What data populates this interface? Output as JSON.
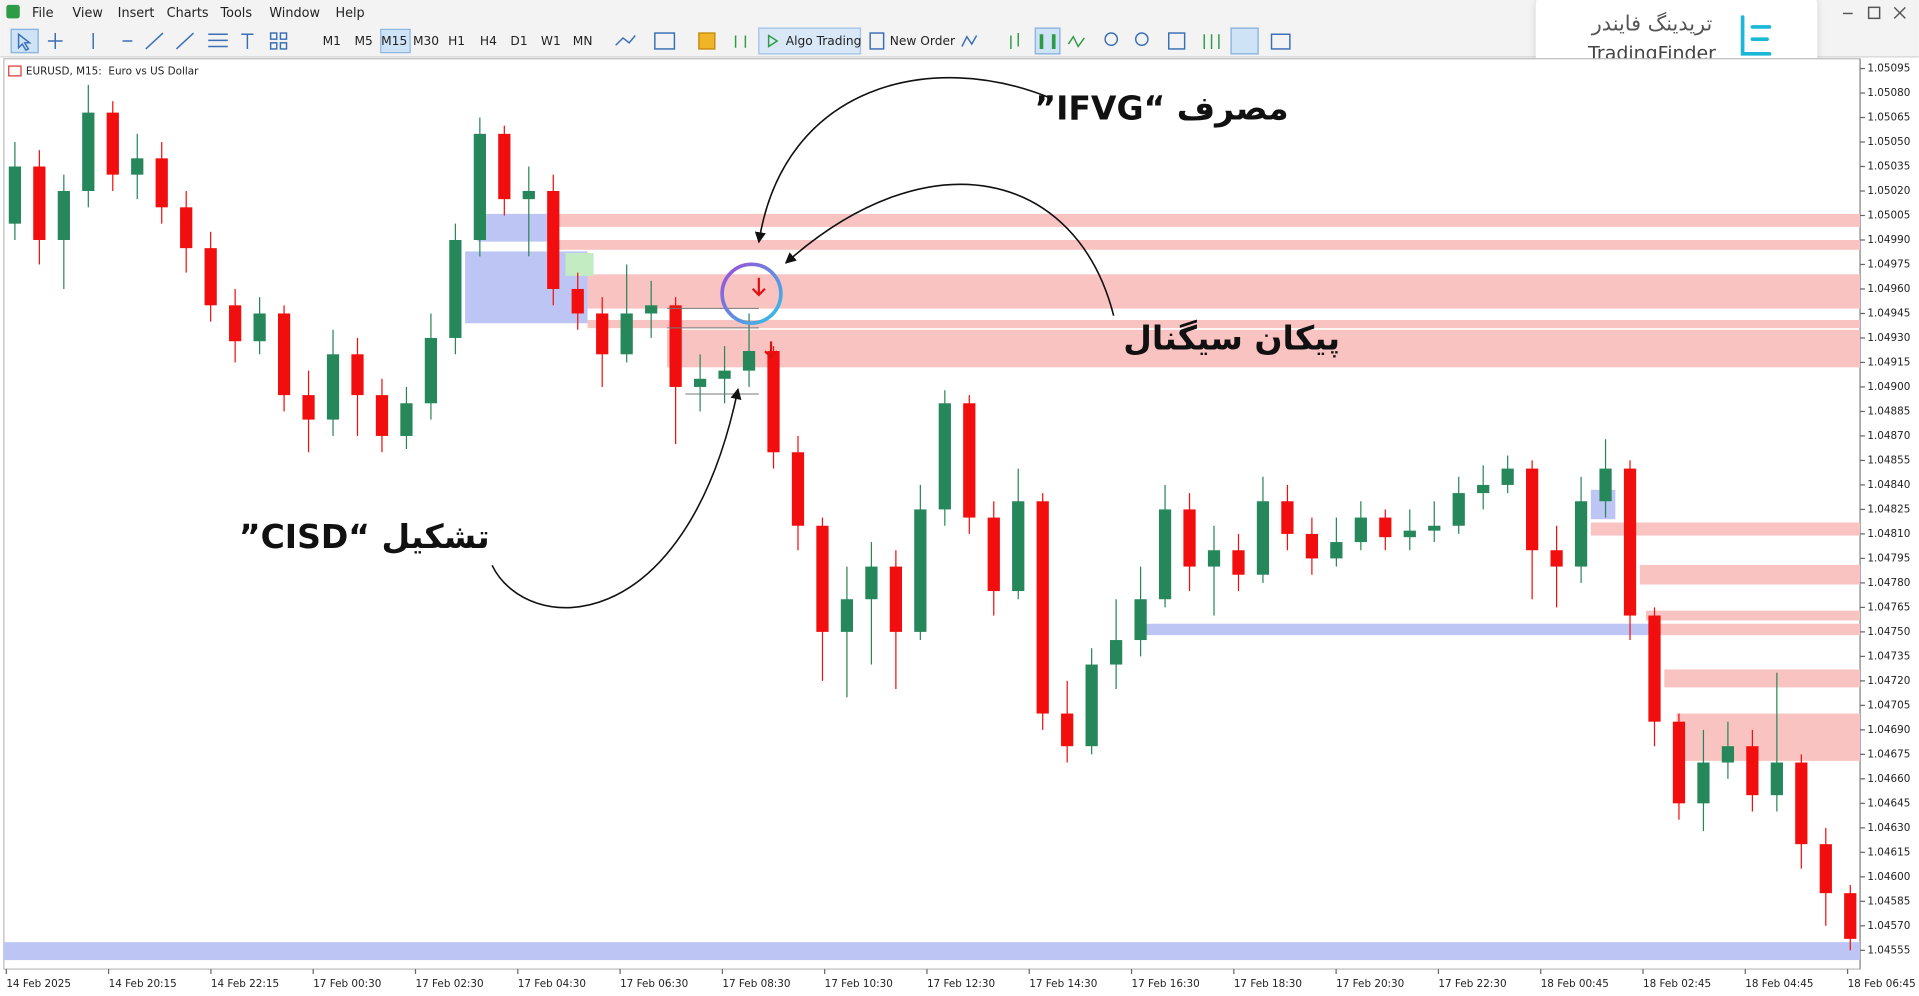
{
  "menu": [
    "File",
    "View",
    "Insert",
    "Charts",
    "Tools",
    "Window",
    "Help"
  ],
  "toolbar": {
    "timeframes": [
      "M1",
      "M5",
      "M15",
      "M30",
      "H1",
      "H4",
      "D1",
      "W1",
      "MN"
    ],
    "algo_trading": "Algo Trading",
    "new_order": "New Order"
  },
  "logo": {
    "persian": "تریدینگ فایندر",
    "latin": "TradingFinder"
  },
  "chart_data": {
    "type": "candlestick",
    "title": "EURUSD, M15:  Euro vs US Dollar",
    "colors": {
      "up": "#26875a",
      "down": "#f20e0e"
    },
    "ylim": [
      1.04545,
      1.05101
    ],
    "yticks": [
      1.05095,
      {
        "value": 1.0508,
        "label": "1.05080"
      },
      1.05065,
      {
        "value": 1.0505,
        "label": "1.05050"
      },
      1.05035,
      {
        "value": 1.0502,
        "label": "1.05020"
      },
      1.05005,
      {
        "value": 1.0499,
        "label": "1.04990"
      },
      1.04975,
      {
        "value": 1.0496,
        "label": "1.04960"
      },
      1.04945,
      {
        "value": 1.0493,
        "label": "1.04930"
      },
      1.04915,
      {
        "value": 1.049,
        "label": "1.04900"
      },
      1.04885,
      {
        "value": 1.0487,
        "label": "1.04870"
      },
      1.04855,
      {
        "value": 1.0484,
        "label": "1.04840"
      },
      1.04825,
      {
        "value": 1.0481,
        "label": "1.04810"
      },
      1.04795,
      {
        "value": 1.0478,
        "label": "1.04780"
      },
      1.04765,
      {
        "value": 1.0475,
        "label": "1.04750"
      },
      1.04735,
      {
        "value": 1.0472,
        "label": "1.04720"
      },
      1.04705,
      {
        "value": 1.0469,
        "label": "1.04690"
      },
      1.04675,
      {
        "value": 1.0466,
        "label": "1.04660"
      },
      1.04645,
      {
        "value": 1.0463,
        "label": "1.04630"
      },
      1.04615,
      {
        "value": 1.046,
        "label": "1.04600"
      },
      1.04585,
      {
        "value": 1.0457,
        "label": "1.04570"
      },
      1.04555
    ],
    "time_labels": [
      "14 Feb 2025",
      "14 Feb 20:15",
      "14 Feb 22:15",
      "17 Feb 00:30",
      "17 Feb 02:30",
      "17 Feb 04:30",
      "17 Feb 06:30",
      "17 Feb 08:30",
      "17 Feb 10:30",
      "17 Feb 12:30",
      "17 Feb 14:30",
      "17 Feb 16:30",
      "17 Feb 18:30",
      "17 Feb 20:30",
      "17 Feb 22:30",
      "18 Feb 00:45",
      "18 Feb 02:45",
      "18 Feb 04:45",
      "18 Feb 06:45"
    ],
    "candles": [
      [
        1.05,
        1.0505,
        1.0499,
        1.05035
      ],
      [
        1.05035,
        1.05045,
        1.04975,
        1.0499
      ],
      [
        1.0499,
        1.0503,
        1.0496,
        1.0502
      ],
      [
        1.0502,
        1.05085,
        1.0501,
        1.05068
      ],
      [
        1.05068,
        1.05075,
        1.0502,
        1.0503
      ],
      [
        1.0503,
        1.05055,
        1.05015,
        1.0504
      ],
      [
        1.0504,
        1.0505,
        1.05,
        1.0501
      ],
      [
        1.0501,
        1.0502,
        1.0497,
        1.04985
      ],
      [
        1.04985,
        1.04995,
        1.0494,
        1.0495
      ],
      [
        1.0495,
        1.0496,
        1.04915,
        1.04928
      ],
      [
        1.04928,
        1.04955,
        1.0492,
        1.04945
      ],
      [
        1.04945,
        1.0495,
        1.04885,
        1.04895
      ],
      [
        1.04895,
        1.0491,
        1.0486,
        1.0488
      ],
      [
        1.0488,
        1.04935,
        1.0487,
        1.0492
      ],
      [
        1.0492,
        1.0493,
        1.0487,
        1.04895
      ],
      [
        1.04895,
        1.04905,
        1.0486,
        1.0487
      ],
      [
        1.0487,
        1.049,
        1.04862,
        1.0489
      ],
      [
        1.0489,
        1.04945,
        1.0488,
        1.0493
      ],
      [
        1.0493,
        1.05,
        1.0492,
        1.0499
      ],
      [
        1.0499,
        1.05065,
        1.0498,
        1.05055
      ],
      [
        1.05055,
        1.0506,
        1.05005,
        1.05015
      ],
      [
        1.05015,
        1.05035,
        1.0498,
        1.0502
      ],
      [
        1.0502,
        1.0503,
        1.0495,
        1.0496
      ],
      [
        1.0496,
        1.0497,
        1.04935,
        1.04945
      ],
      [
        1.04945,
        1.04955,
        1.049,
        1.0492
      ],
      [
        1.0492,
        1.04975,
        1.04915,
        1.04945
      ],
      [
        1.04945,
        1.04965,
        1.0493,
        1.0495
      ],
      [
        1.0495,
        1.04955,
        1.04865,
        1.049
      ],
      [
        1.049,
        1.0492,
        1.04885,
        1.04905
      ],
      [
        1.04905,
        1.04925,
        1.0489,
        1.0491
      ],
      [
        1.0491,
        1.04945,
        1.049,
        1.04922
      ],
      [
        1.04922,
        1.04925,
        1.0485,
        1.0486
      ],
      [
        1.0486,
        1.0487,
        1.048,
        1.04815
      ],
      [
        1.04815,
        1.0482,
        1.0472,
        1.0475
      ],
      [
        1.0475,
        1.0479,
        1.0471,
        1.0477
      ],
      [
        1.0477,
        1.04805,
        1.0473,
        1.0479
      ],
      [
        1.0479,
        1.048,
        1.04715,
        1.0475
      ],
      [
        1.0475,
        1.0484,
        1.04745,
        1.04825
      ],
      [
        1.04825,
        1.04898,
        1.04815,
        1.0489
      ],
      [
        1.0489,
        1.04895,
        1.0481,
        1.0482
      ],
      [
        1.0482,
        1.0483,
        1.0476,
        1.04775
      ],
      [
        1.04775,
        1.0485,
        1.0477,
        1.0483
      ],
      [
        1.0483,
        1.04835,
        1.0469,
        1.047
      ],
      [
        1.047,
        1.0472,
        1.0467,
        1.0468
      ],
      [
        1.0468,
        1.0474,
        1.04675,
        1.0473
      ],
      [
        1.0473,
        1.0477,
        1.04715,
        1.04745
      ],
      [
        1.04745,
        1.0479,
        1.04735,
        1.0477
      ],
      [
        1.0477,
        1.0484,
        1.04765,
        1.04825
      ],
      [
        1.04825,
        1.04835,
        1.04775,
        1.0479
      ],
      [
        1.0479,
        1.04815,
        1.0476,
        1.048
      ],
      [
        1.048,
        1.0481,
        1.04775,
        1.04785
      ],
      [
        1.04785,
        1.04845,
        1.0478,
        1.0483
      ],
      [
        1.0483,
        1.0484,
        1.048,
        1.0481
      ],
      [
        1.0481,
        1.0482,
        1.04785,
        1.04795
      ],
      [
        1.04795,
        1.0482,
        1.0479,
        1.04805
      ],
      [
        1.04805,
        1.0483,
        1.048,
        1.0482
      ],
      [
        1.0482,
        1.04825,
        1.048,
        1.04808
      ],
      [
        1.04808,
        1.04825,
        1.048,
        1.04812
      ],
      [
        1.04812,
        1.0483,
        1.04805,
        1.04815
      ],
      [
        1.04815,
        1.04845,
        1.0481,
        1.04835
      ],
      [
        1.04835,
        1.04852,
        1.04825,
        1.0484
      ],
      [
        1.0484,
        1.04858,
        1.04835,
        1.0485
      ],
      [
        1.0485,
        1.04855,
        1.0477,
        1.048
      ],
      [
        1.048,
        1.04815,
        1.04765,
        1.0479
      ],
      [
        1.0479,
        1.04845,
        1.0478,
        1.0483
      ],
      [
        1.0483,
        1.04868,
        1.0482,
        1.0485
      ],
      [
        1.0485,
        1.04855,
        1.04745,
        1.0476
      ],
      [
        1.0476,
        1.04765,
        1.0468,
        1.04695
      ],
      [
        1.04695,
        1.047,
        1.04635,
        1.04645
      ],
      [
        1.04645,
        1.0469,
        1.04628,
        1.0467
      ],
      [
        1.0467,
        1.04695,
        1.0466,
        1.0468
      ],
      [
        1.0468,
        1.0469,
        1.0464,
        1.0465
      ],
      [
        1.0465,
        1.04725,
        1.0464,
        1.0467
      ],
      [
        1.0467,
        1.04675,
        1.04605,
        1.0462
      ],
      [
        1.0462,
        1.0463,
        1.0457,
        1.0459
      ],
      [
        1.0459,
        1.04595,
        1.04555,
        1.04562
      ]
    ],
    "zones": [
      {
        "color": "#f9c3c1",
        "low": 1.04998,
        "high": 1.05006,
        "from": 22.2,
        "to": 75.4
      },
      {
        "color": "#f9c3c1",
        "low": 1.04984,
        "high": 1.0499,
        "from": 22.2,
        "to": 75.4
      },
      {
        "color": "#f9c3c1",
        "low": 1.04948,
        "high": 1.04969,
        "from": 23.4,
        "to": 75.4
      },
      {
        "color": "#f9c3c1",
        "low": 1.04936,
        "high": 1.04941,
        "from": 23.4,
        "to": 75.4
      },
      {
        "color": "#f9c3c1",
        "low": 1.04912,
        "high": 1.04935,
        "from": 26.65,
        "to": 75.4
      },
      {
        "color": "#f9c3c1",
        "low": 1.04809,
        "high": 1.04817,
        "from": 64.4,
        "to": 75.4
      },
      {
        "color": "#f9c3c1",
        "low": 1.04779,
        "high": 1.04791,
        "from": 66.4,
        "to": 75.4
      },
      {
        "color": "#f9c3c1",
        "low": 1.04757,
        "high": 1.04763,
        "from": 66.65,
        "to": 75.4
      },
      {
        "color": "#f9c3c1",
        "low": 1.04748,
        "high": 1.04755,
        "from": 66.9,
        "to": 75.4
      },
      {
        "color": "#f9c3c1",
        "low": 1.04716,
        "high": 1.04727,
        "from": 67.4,
        "to": 75.4
      },
      {
        "color": "#f9c3c1",
        "low": 1.04671,
        "high": 1.047,
        "from": 67.9,
        "to": 75.4
      },
      {
        "color": "#bcc5f3",
        "low": 1.04989,
        "high": 1.05006,
        "from": 18.9,
        "to": 22.15
      },
      {
        "color": "#bcc5f3",
        "low": 1.04939,
        "high": 1.04983,
        "from": 18.4,
        "to": 23.4
      },
      {
        "color": "#bcc5f3",
        "low": 1.04748,
        "high": 1.04755,
        "from": 46.15,
        "to": 66.9
      },
      {
        "color": "#bcc5f3",
        "low": 1.04819,
        "high": 1.04837,
        "from": 64.4,
        "to": 65.4
      },
      {
        "color": "#bcc5f3",
        "low": 1.04549,
        "high": 1.0456,
        "from": -0.45,
        "to": 75.4
      },
      {
        "color": "#c3ecc3",
        "low": 1.04968,
        "high": 1.04982,
        "from": 22.5,
        "to": 23.65
      }
    ],
    "annotations": [
      "مصرف “IFVG”",
      "پیکان سیگنال",
      "تشکیل “CISD”"
    ]
  }
}
